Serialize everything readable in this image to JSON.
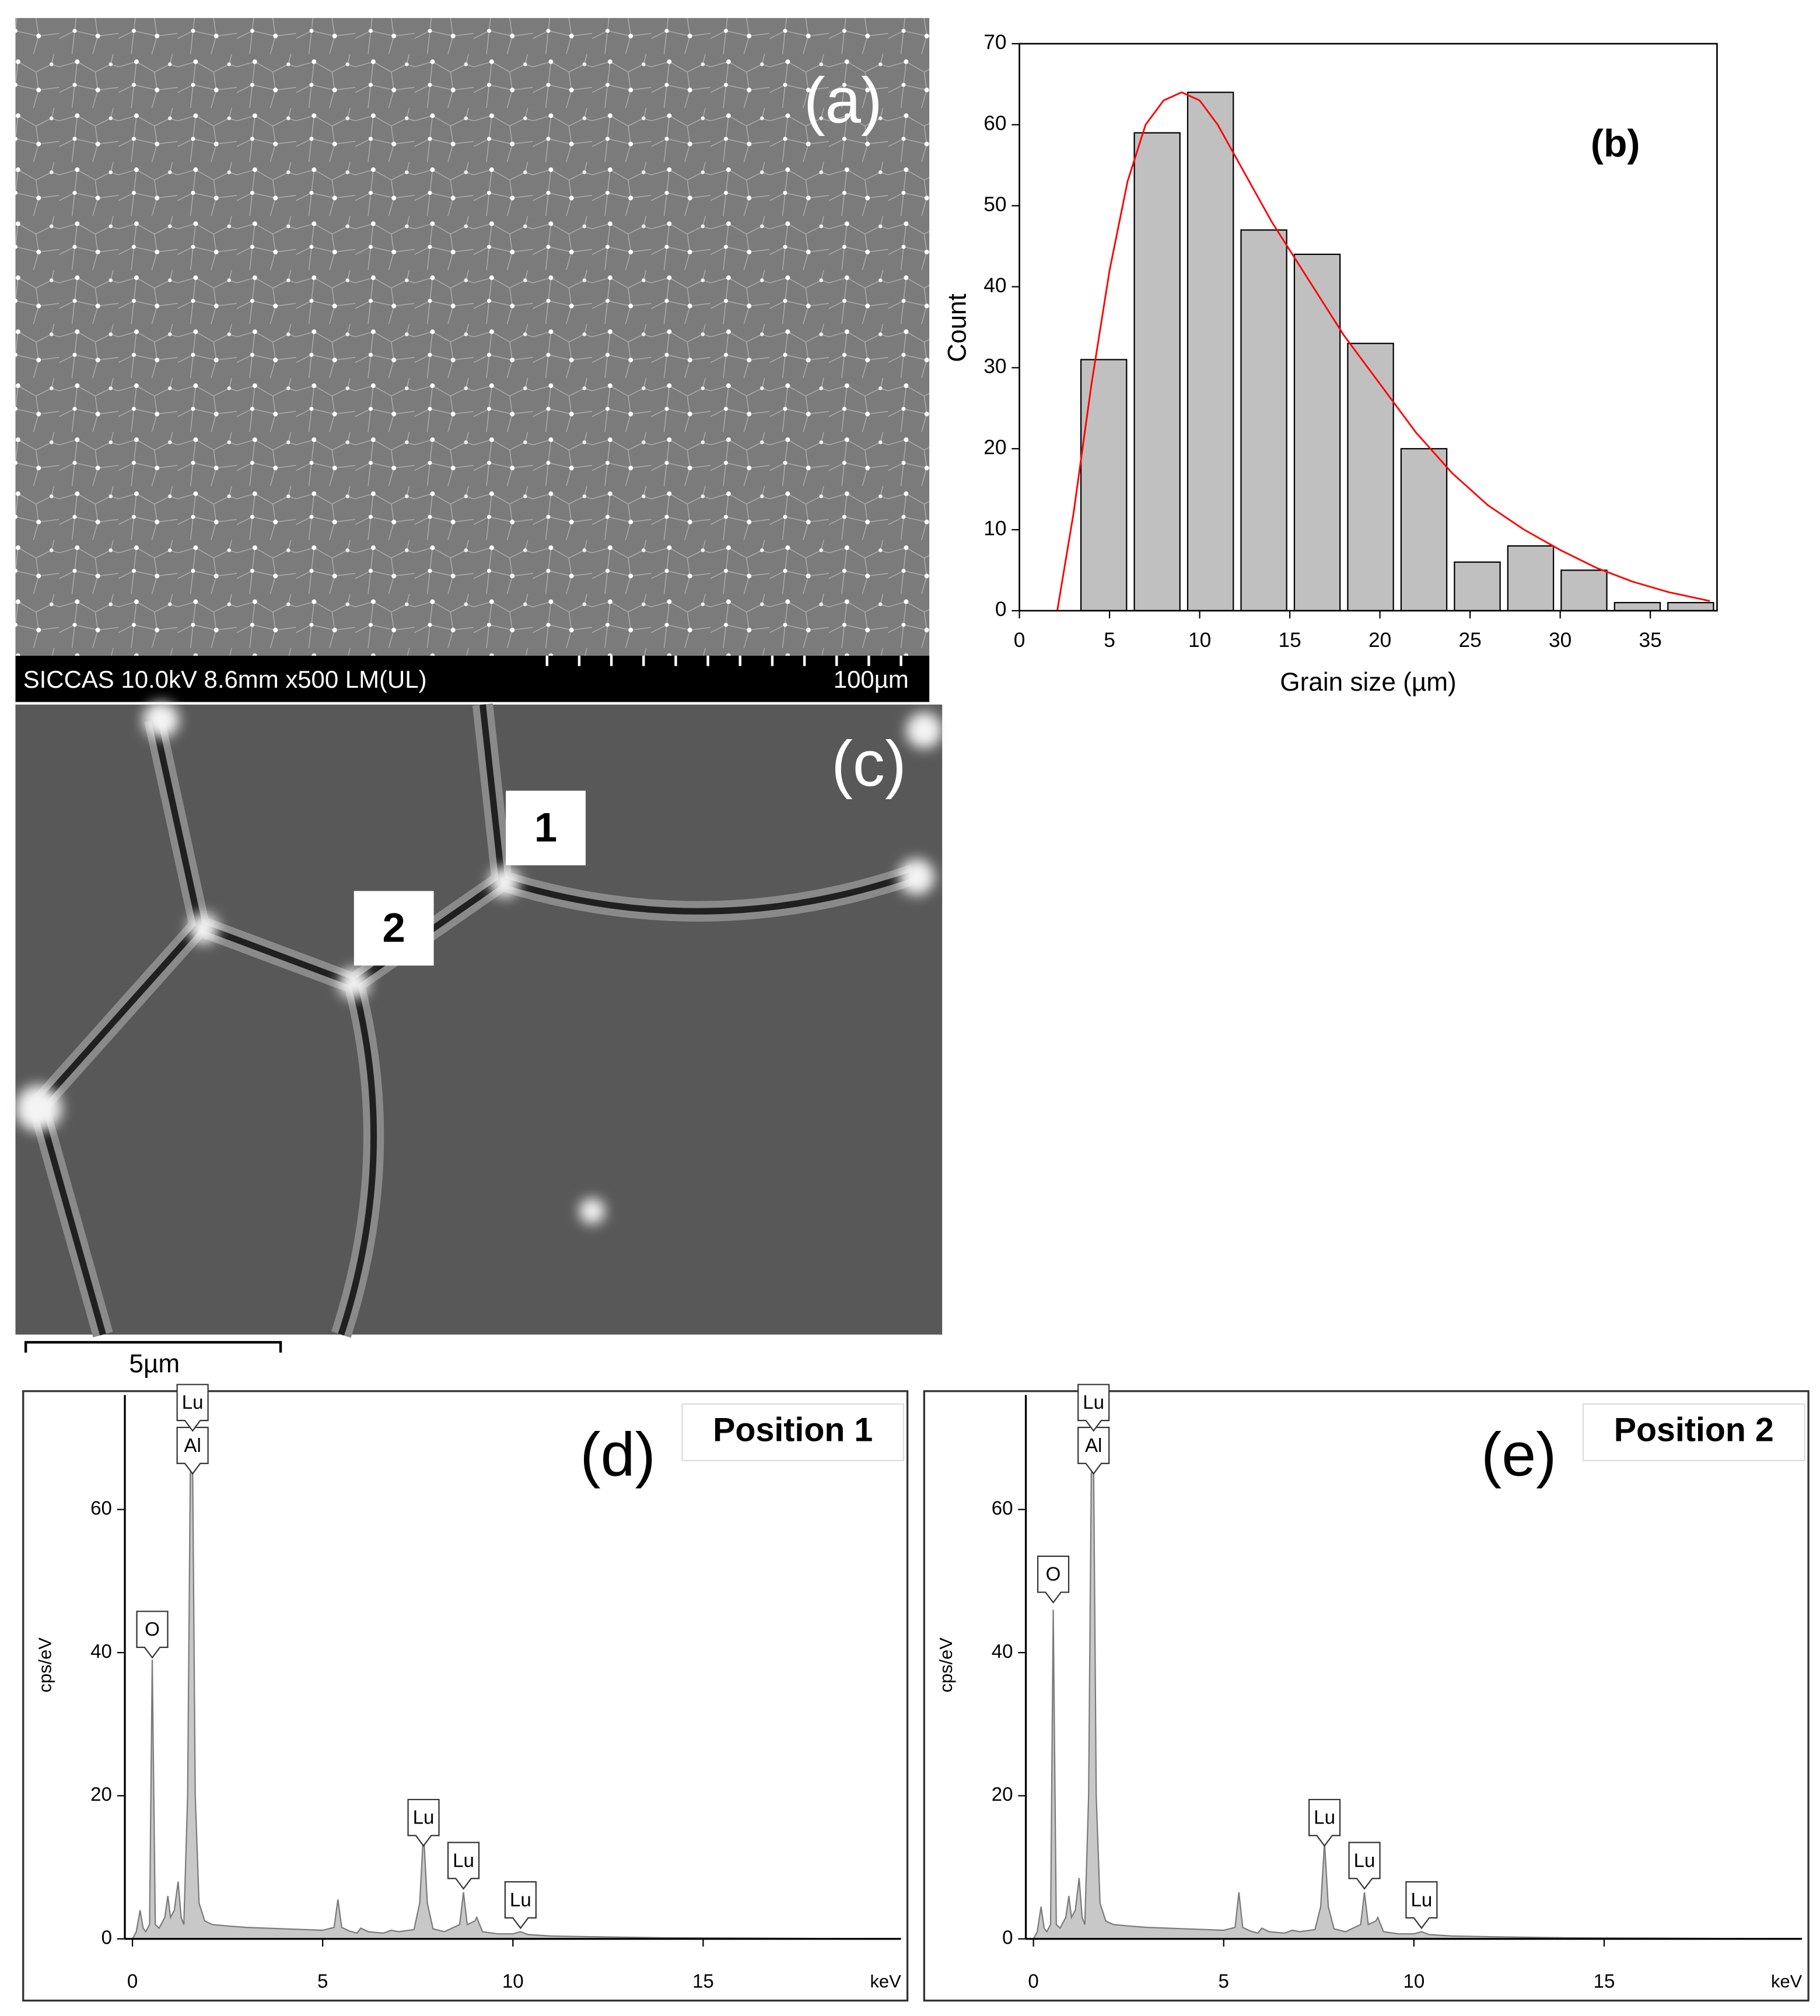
{
  "images": {
    "a": {
      "label": "(a)",
      "info": "SICCAS 10.0kV 8.6mm x500 LM(UL)",
      "scale": "100µm"
    },
    "c": {
      "label": "(c)",
      "point1": "1",
      "point2": "2",
      "scale": "5µm"
    }
  },
  "chart_data": [
    {
      "type": "histogram",
      "panel_label": "(b)",
      "xlabel": "Grain size (µm)",
      "ylabel": "Count",
      "bins": [
        3.2,
        6.16,
        9.12,
        12.08,
        15.04,
        18,
        20.96,
        23.92,
        26.88,
        29.84,
        32.8,
        35.76,
        38.72
      ],
      "values": [
        31,
        59,
        64,
        47,
        44,
        33,
        20,
        6,
        8,
        5,
        1,
        1
      ],
      "color": "#c0c0c0",
      "fit": {
        "color": "#ff0000",
        "x": [
          2.1,
          3,
          4,
          5,
          6,
          7,
          8,
          9,
          10,
          11,
          12,
          14,
          16,
          18,
          20,
          22,
          24,
          26,
          28,
          30,
          32,
          34,
          36,
          38.3
        ],
        "y": [
          0,
          12,
          28,
          42,
          53,
          60,
          63,
          64,
          63,
          60,
          56,
          48,
          41,
          34,
          28,
          22,
          17,
          13,
          10,
          7.5,
          5.3,
          3.6,
          2.3,
          1.2
        ]
      },
      "xlim": [
        0,
        38.7
      ],
      "xticks": [
        0,
        5,
        10,
        15,
        20,
        25,
        30,
        35
      ],
      "ylim": [
        0,
        70
      ],
      "yticks": [
        0,
        10,
        20,
        30,
        40,
        50,
        60,
        70
      ]
    },
    {
      "type": "area",
      "panel_label": "(d)",
      "note": "Position 1",
      "xlabel": "keV",
      "ylabel": "cps/eV",
      "color": "#c8c8c8",
      "edge_color": "#7a7a7a",
      "x": [
        0,
        0.1,
        0.2,
        0.28,
        0.35,
        0.45,
        0.52,
        0.6,
        0.7,
        0.85,
        0.93,
        1.0,
        1.1,
        1.2,
        1.28,
        1.35,
        1.45,
        1.52,
        1.58,
        1.65,
        1.75,
        1.9,
        2.1,
        2.5,
        3,
        4,
        5,
        5.3,
        5.4,
        5.5,
        5.7,
        5.9,
        6,
        6.2,
        6.6,
        6.8,
        7,
        7.4,
        7.55,
        7.65,
        7.75,
        7.9,
        8.2,
        8.6,
        8.7,
        8.8,
        9.0,
        9.05,
        9.2,
        9.6,
        10,
        10.2,
        10.4,
        11,
        12,
        14,
        16,
        18,
        20
      ],
      "values": [
        0,
        1,
        4,
        1.5,
        1,
        2,
        39,
        2,
        1.5,
        3,
        6,
        3,
        4,
        8,
        3,
        2,
        20,
        65,
        67,
        20,
        5,
        2.5,
        2,
        1.8,
        1.6,
        1.4,
        1.2,
        1.6,
        5.5,
        1.6,
        1.1,
        0.8,
        1.5,
        1,
        0.8,
        1.2,
        1,
        1.3,
        5,
        15,
        5,
        1.4,
        1,
        2,
        6.5,
        2,
        2.5,
        3,
        1,
        0.7,
        0.7,
        1,
        0.6,
        0.4,
        0.3,
        0.15,
        0.1,
        0.05,
        0
      ],
      "annotations": [
        {
          "text": "O",
          "x": 0.52,
          "y": 39.3
        },
        {
          "text": "Al",
          "x": 1.58,
          "y": 65
        },
        {
          "text": "Lu",
          "x": 1.58,
          "y": 71
        },
        {
          "text": "Lu",
          "x": 7.65,
          "y": 13
        },
        {
          "text": "Lu",
          "x": 8.7,
          "y": 7
        },
        {
          "text": "Lu",
          "x": 10.2,
          "y": 1.5
        }
      ],
      "xlim": [
        -0.2,
        20.2
      ],
      "xticks": [
        0,
        5,
        10,
        15
      ],
      "ylim": [
        0,
        76
      ],
      "yticks": [
        0,
        20,
        40,
        60
      ]
    },
    {
      "type": "area",
      "panel_label": "(e)",
      "note": "Position 2",
      "xlabel": "keV",
      "ylabel": "cps/eV",
      "color": "#c8c8c8",
      "edge_color": "#7a7a7a",
      "x": [
        0,
        0.1,
        0.2,
        0.28,
        0.35,
        0.45,
        0.52,
        0.6,
        0.7,
        0.85,
        0.93,
        1.0,
        1.1,
        1.2,
        1.28,
        1.35,
        1.45,
        1.52,
        1.58,
        1.65,
        1.75,
        1.9,
        2.1,
        2.5,
        3,
        4,
        5,
        5.3,
        5.4,
        5.5,
        5.7,
        5.9,
        6,
        6.2,
        6.6,
        6.8,
        7,
        7.4,
        7.55,
        7.65,
        7.75,
        7.9,
        8.2,
        8.6,
        8.7,
        8.8,
        9.0,
        9.05,
        9.2,
        9.6,
        10,
        10.2,
        10.4,
        11,
        12,
        14,
        16,
        18,
        20
      ],
      "values": [
        0,
        1,
        4.5,
        1.5,
        1,
        2,
        46,
        2,
        1.5,
        3,
        6,
        3,
        4,
        8.5,
        3,
        2,
        20,
        65,
        67,
        20,
        5,
        2.5,
        2,
        1.8,
        1.6,
        1.4,
        1.2,
        1.6,
        6.5,
        1.6,
        1.1,
        0.8,
        1.5,
        1,
        0.8,
        1.2,
        1,
        1.3,
        4.5,
        13.5,
        4.5,
        1.4,
        1,
        2,
        6.5,
        2,
        2.5,
        3,
        1,
        0.7,
        0.7,
        1,
        0.6,
        0.4,
        0.3,
        0.15,
        0.1,
        0.05,
        0
      ],
      "annotations": [
        {
          "text": "O",
          "x": 0.52,
          "y": 47
        },
        {
          "text": "Al",
          "x": 1.58,
          "y": 65
        },
        {
          "text": "Lu",
          "x": 1.58,
          "y": 71
        },
        {
          "text": "Lu",
          "x": 7.65,
          "y": 13
        },
        {
          "text": "Lu",
          "x": 8.7,
          "y": 7
        },
        {
          "text": "Lu",
          "x": 10.2,
          "y": 1.5
        }
      ],
      "xlim": [
        -0.2,
        20.2
      ],
      "xticks": [
        0,
        5,
        10,
        15
      ],
      "ylim": [
        0,
        76
      ],
      "yticks": [
        0,
        20,
        40,
        60
      ]
    }
  ]
}
